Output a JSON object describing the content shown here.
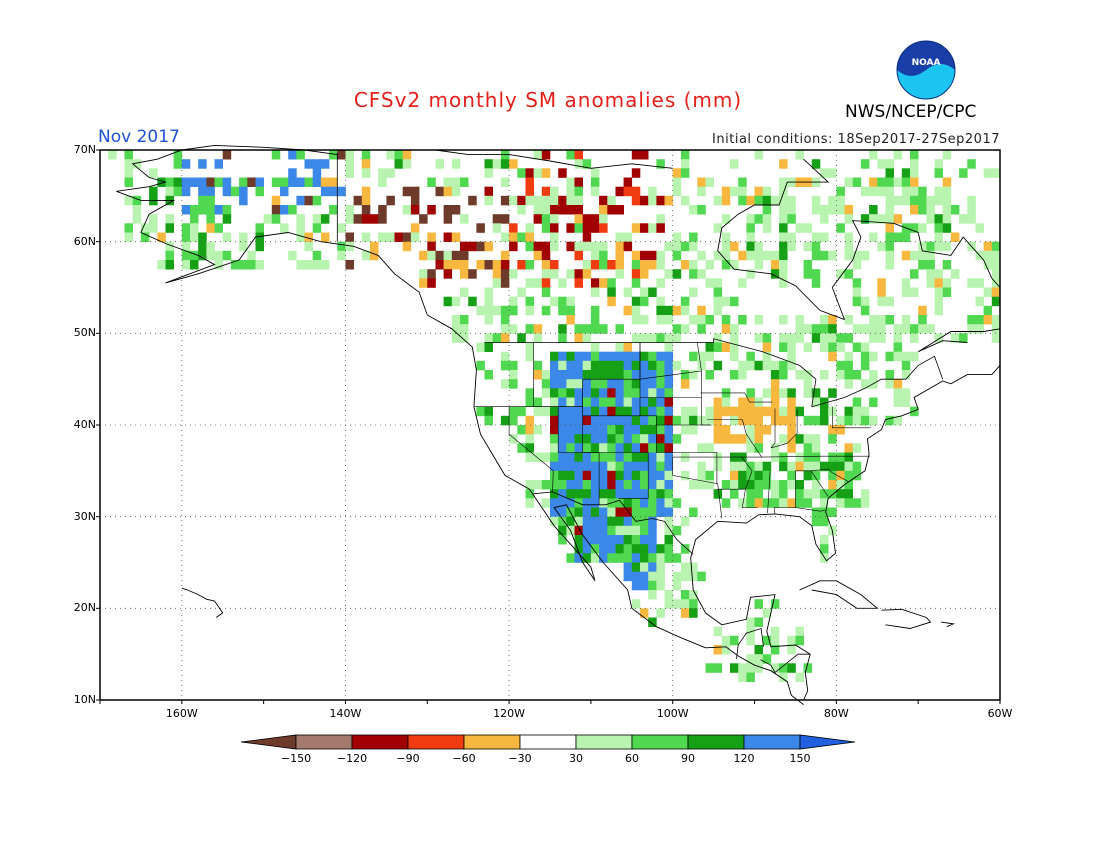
{
  "title": "CFSv2 monthly SM anomalies (mm)",
  "valid_month": "Nov 2017",
  "initial_conditions": "Initial conditions: 18Sep2017-27Sep2017",
  "agency": "NWS/NCEP/CPC",
  "logo_text": "NOAA",
  "map": {
    "lon_range": [
      -170,
      -60
    ],
    "lat_range": [
      10,
      70
    ],
    "lat_labels": [
      "70N",
      "60N",
      "50N",
      "40N",
      "30N",
      "20N",
      "10N"
    ],
    "lon_labels": [
      "160W",
      "140W",
      "120W",
      "100W",
      "80W",
      "60W"
    ],
    "grid": "dotted"
  },
  "colorbar": {
    "labels": [
      "-150",
      "-120",
      "-90",
      "-60",
      "-30",
      "30",
      "60",
      "90",
      "120",
      "150"
    ],
    "colors": [
      "#6e3b2a",
      "#a57a6e",
      "#a00000",
      "#f03c10",
      "#f8b840",
      "#ffffff",
      "#b8f4b0",
      "#50d850",
      "#16a016",
      "#3c88e8",
      "#2060e0"
    ]
  },
  "colors": {
    "title": "#e8201c",
    "month": "#2050d8",
    "logo_outer": "#1a3ea8",
    "logo_inner": "#1cc4f0"
  },
  "regions": [
    {
      "name": "alaska-north",
      "lon": [
        -160,
        -140
      ],
      "lat": [
        63,
        70
      ],
      "level": "mixed-wet"
    },
    {
      "name": "yukon-bc",
      "lon": [
        -140,
        -120
      ],
      "lat": [
        55,
        66
      ],
      "level": "mixed-dry"
    },
    {
      "name": "nw-territories",
      "lon": [
        -120,
        -100
      ],
      "lat": [
        55,
        70
      ],
      "level": "mixed"
    },
    {
      "name": "us-west-rockies",
      "lon": [
        -115,
        -100
      ],
      "lat": [
        30,
        48
      ],
      "level": "wet"
    },
    {
      "name": "us-midwest",
      "lon": [
        -95,
        -85
      ],
      "lat": [
        38,
        43
      ],
      "level": "dry"
    },
    {
      "name": "us-southeast",
      "lon": [
        -92,
        -78
      ],
      "lat": [
        28,
        37
      ],
      "level": "moist"
    },
    {
      "name": "mexico-north",
      "lon": [
        -112,
        -102
      ],
      "lat": [
        22,
        32
      ],
      "level": "wet"
    }
  ]
}
